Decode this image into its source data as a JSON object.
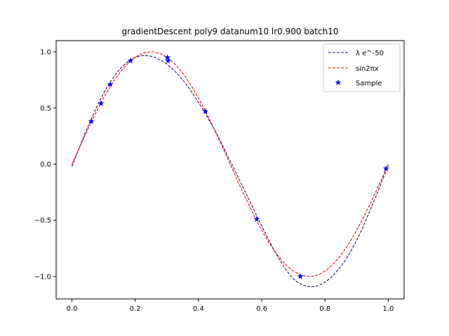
{
  "chart_data": {
    "type": "line",
    "title": "gradientDescent poly9 datanum10 lr0.900 batch10",
    "xlabel": "",
    "ylabel": "",
    "xlim": [
      -0.05,
      1.05
    ],
    "ylim": [
      -1.2,
      1.1
    ],
    "xticks": [
      0.0,
      0.2,
      0.4,
      0.6,
      0.8,
      1.0
    ],
    "xtick_labels": [
      "0.0",
      "0.2",
      "0.4",
      "0.6",
      "0.8",
      "1.0"
    ],
    "yticks": [
      -1.0,
      -0.5,
      0.0,
      0.5,
      1.0
    ],
    "ytick_labels": [
      "−1.0",
      "−0.5",
      "0.0",
      "0.5",
      "1.0"
    ],
    "grid": false,
    "legend_position": "top-right",
    "series": [
      {
        "name": "λ e^-50",
        "style": "dashed",
        "color": "#2b0f6b",
        "x": [
          0.0,
          0.05,
          0.1,
          0.15,
          0.2,
          0.25,
          0.3,
          0.35,
          0.4,
          0.45,
          0.5,
          0.55,
          0.6,
          0.65,
          0.7,
          0.75,
          0.8,
          0.85,
          0.9,
          0.95,
          1.0
        ],
        "y": [
          -0.02,
          0.33,
          0.63,
          0.84,
          0.95,
          0.96,
          0.89,
          0.75,
          0.55,
          0.31,
          0.03,
          -0.26,
          -0.55,
          -0.82,
          -1.02,
          -1.09,
          -1.05,
          -0.91,
          -0.68,
          -0.36,
          -0.01
        ]
      },
      {
        "name": "sin2πx",
        "style": "dashed",
        "color": "#ff0000",
        "function": "sin(2*pi*x)",
        "x_range": [
          0.0,
          1.0
        ]
      },
      {
        "name": "Sample",
        "style": "markers",
        "marker": "star",
        "color": "#0000ff",
        "x": [
          0.061,
          0.092,
          0.121,
          0.185,
          0.302,
          0.304,
          0.422,
          0.584,
          0.722,
          0.993
        ],
        "y": [
          0.38,
          0.54,
          0.71,
          0.92,
          0.95,
          0.92,
          0.47,
          -0.49,
          -1.0,
          -0.04
        ]
      }
    ]
  }
}
